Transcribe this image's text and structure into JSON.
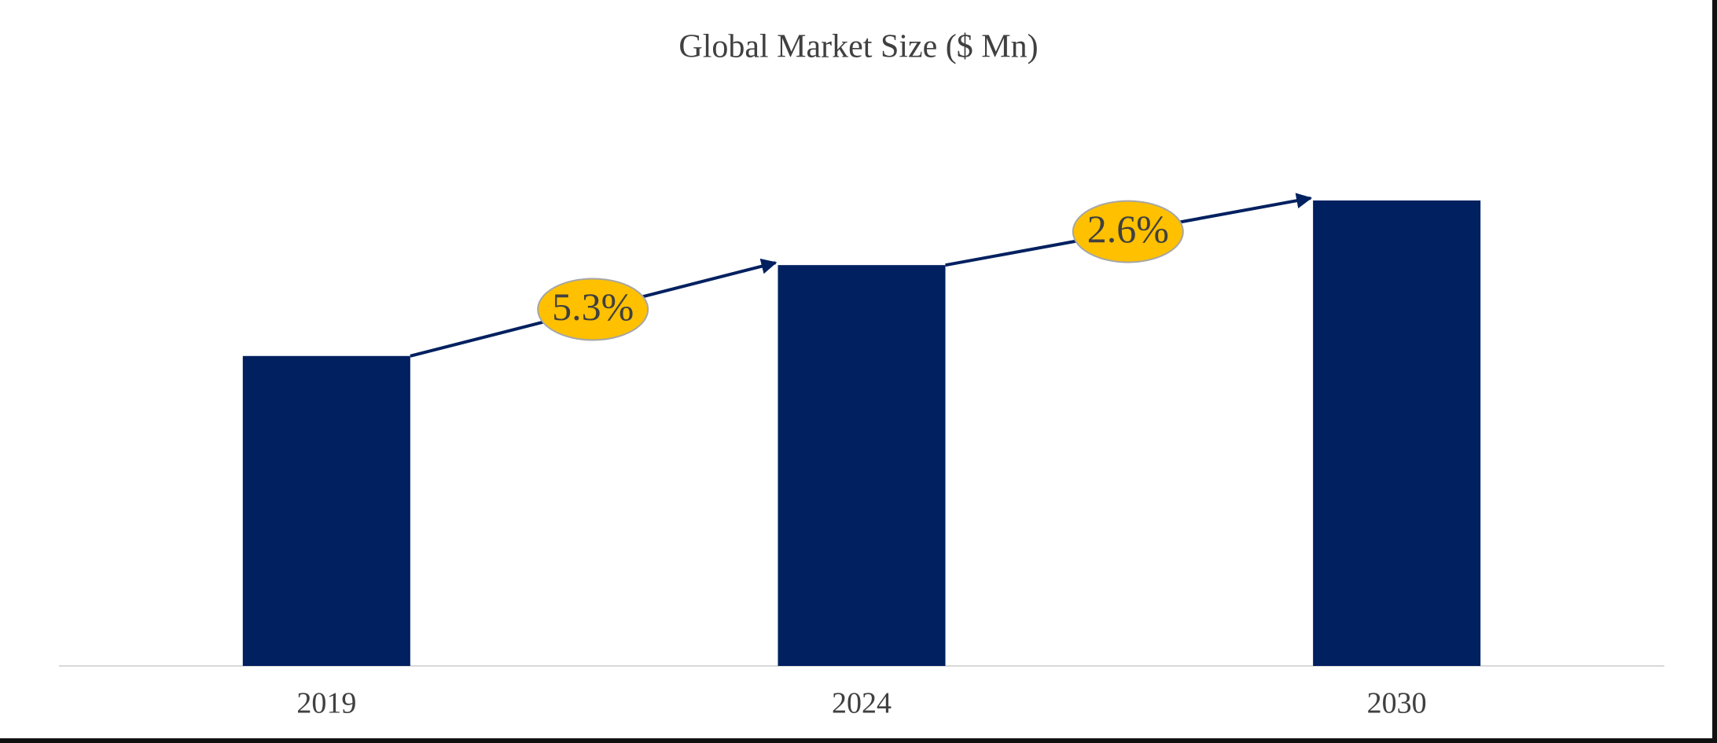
{
  "chart_data": {
    "type": "bar",
    "title": "Global Market Size ($ Mn)",
    "categories": [
      "2019",
      "2024",
      "2030"
    ],
    "values": [
      283,
      366,
      425
    ],
    "color": "#002060",
    "ylim": [
      0,
      500
    ],
    "annotations": [
      "5.3%",
      "2.6%"
    ],
    "annotation_color": "#ffc000"
  }
}
